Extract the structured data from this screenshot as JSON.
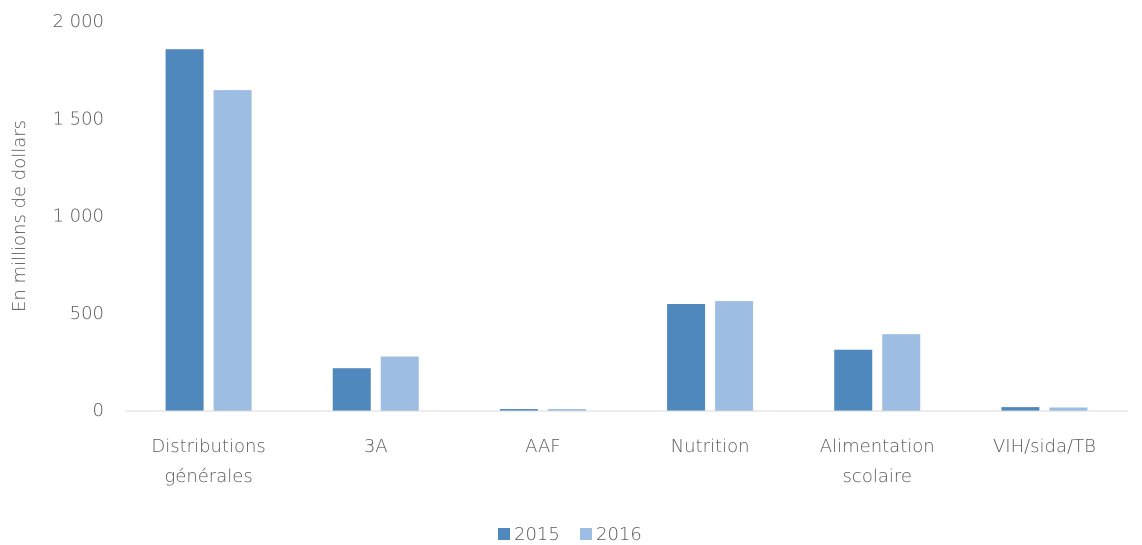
{
  "chart_data": {
    "type": "bar",
    "y_label": "En millions de dollars",
    "categories": [
      "Distributions générales",
      "3A",
      "AAF",
      "Nutrition",
      "Alimentation scolaire",
      "VIH/sida/TB"
    ],
    "series": [
      {
        "name": "2015",
        "color": "#4f88bd",
        "values": [
          1860,
          220,
          10,
          550,
          315,
          20
        ]
      },
      {
        "name": "2016",
        "color": "#9dbde3",
        "values": [
          1650,
          280,
          10,
          565,
          395,
          18
        ]
      }
    ],
    "ylim": [
      0,
      2000
    ],
    "yticks": [
      0,
      500,
      {
        "value": 1000,
        "label": "1 000"
      },
      {
        "value": 1500,
        "label": "1 500"
      },
      {
        "value": 2000,
        "label": "2 000"
      }
    ],
    "grid": false,
    "legend": "bottom"
  }
}
